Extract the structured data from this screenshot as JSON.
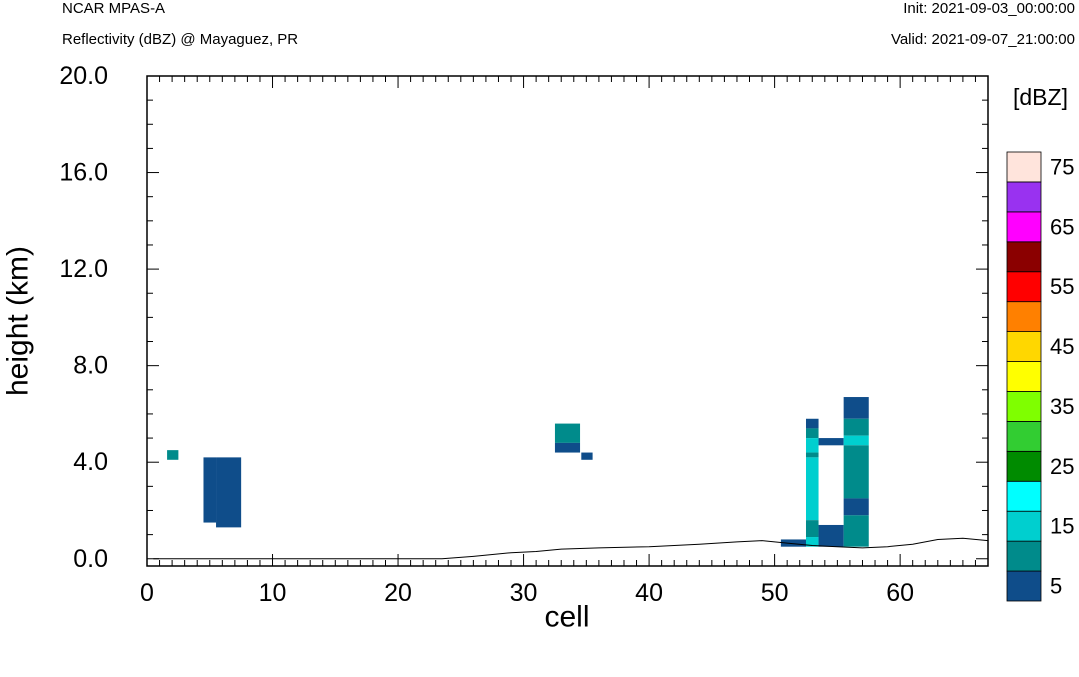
{
  "header": {
    "left_top": "NCAR MPAS-A",
    "left_sub": "Reflectivity (dBZ) @ Mayaguez, PR",
    "right_top": "Init: 2021-09-03_00:00:00",
    "right_sub": "Valid: 2021-09-07_21:00:00"
  },
  "chart_data": {
    "type": "heatmap",
    "xlabel": "cell",
    "ylabel": "height (km)",
    "xlim": [
      0,
      67
    ],
    "ylim": [
      -0.3,
      20.0
    ],
    "x_ticks": [
      0,
      10,
      20,
      30,
      40,
      50,
      60
    ],
    "x_tick_labels": [
      "0",
      "10",
      "20",
      "30",
      "40",
      "50",
      "60"
    ],
    "y_ticks": [
      0,
      4,
      8,
      12,
      16,
      20
    ],
    "y_tick_labels": [
      "0.0",
      "4.0",
      "8.0",
      "12.0",
      "16.0",
      "20.0"
    ],
    "colorbar": {
      "title": "[dBZ]",
      "levels": [
        5,
        10,
        15,
        20,
        25,
        30,
        35,
        40,
        45,
        50,
        55,
        60,
        65,
        70,
        75
      ],
      "colors": [
        "#0f4d8a",
        "#008b8b",
        "#00cfcf",
        "#00ffff",
        "#008b00",
        "#32cd32",
        "#7fff00",
        "#ffff00",
        "#ffd700",
        "#ff8000",
        "#ff0000",
        "#8b0000",
        "#ff00ff",
        "#9932f0",
        "#ffe4dc"
      ],
      "tick_labels": [
        "5",
        "15",
        "25",
        "35",
        "45",
        "55",
        "65",
        "75"
      ]
    },
    "cells": [
      {
        "x0": 1.6,
        "x1": 2.5,
        "y0": 4.1,
        "y1": 4.5,
        "dbz": 10
      },
      {
        "x0": 4.5,
        "x1": 5.5,
        "y0": 1.5,
        "y1": 4.2,
        "dbz": 5
      },
      {
        "x0": 5.5,
        "x1": 7.5,
        "y0": 1.3,
        "y1": 4.2,
        "dbz": 5
      },
      {
        "x0": 32.5,
        "x1": 34.5,
        "y0": 4.8,
        "y1": 5.6,
        "dbz": 10
      },
      {
        "x0": 32.5,
        "x1": 34.5,
        "y0": 4.4,
        "y1": 4.8,
        "dbz": 5
      },
      {
        "x0": 34.6,
        "x1": 35.5,
        "y0": 4.1,
        "y1": 4.4,
        "dbz": 5
      },
      {
        "x0": 50.5,
        "x1": 52.5,
        "y0": 0.5,
        "y1": 0.8,
        "dbz": 5
      },
      {
        "x0": 52.5,
        "x1": 53.5,
        "y0": 5.4,
        "y1": 5.8,
        "dbz": 5
      },
      {
        "x0": 52.5,
        "x1": 53.5,
        "y0": 5.0,
        "y1": 5.4,
        "dbz": 10
      },
      {
        "x0": 52.5,
        "x1": 53.5,
        "y0": 4.4,
        "y1": 5.0,
        "dbz": 15
      },
      {
        "x0": 52.5,
        "x1": 53.5,
        "y0": 4.2,
        "y1": 4.4,
        "dbz": 10
      },
      {
        "x0": 52.5,
        "x1": 53.5,
        "y0": 1.6,
        "y1": 4.2,
        "dbz": 15
      },
      {
        "x0": 52.5,
        "x1": 53.5,
        "y0": 0.9,
        "y1": 1.6,
        "dbz": 10
      },
      {
        "x0": 52.5,
        "x1": 53.5,
        "y0": 0.5,
        "y1": 0.9,
        "dbz": 15
      },
      {
        "x0": 53.5,
        "x1": 55.5,
        "y0": 4.7,
        "y1": 5.0,
        "dbz": 5
      },
      {
        "x0": 53.5,
        "x1": 55.5,
        "y0": 0.5,
        "y1": 1.4,
        "dbz": 5
      },
      {
        "x0": 55.5,
        "x1": 57.5,
        "y0": 5.8,
        "y1": 6.7,
        "dbz": 5
      },
      {
        "x0": 55.5,
        "x1": 57.5,
        "y0": 5.1,
        "y1": 5.8,
        "dbz": 10
      },
      {
        "x0": 55.5,
        "x1": 57.5,
        "y0": 4.7,
        "y1": 5.1,
        "dbz": 15
      },
      {
        "x0": 55.5,
        "x1": 57.5,
        "y0": 2.5,
        "y1": 4.7,
        "dbz": 10
      },
      {
        "x0": 55.5,
        "x1": 57.5,
        "y0": 1.8,
        "y1": 2.5,
        "dbz": 5
      },
      {
        "x0": 55.5,
        "x1": 57.5,
        "y0": 0.5,
        "y1": 1.8,
        "dbz": 10
      }
    ],
    "terrain": {
      "x": [
        0.5,
        23.5,
        26,
        29,
        31,
        33,
        36,
        40,
        44,
        47,
        49,
        51,
        53,
        55,
        57,
        59,
        61,
        63,
        65,
        67
      ],
      "y": [
        0.0,
        0.0,
        0.1,
        0.25,
        0.3,
        0.4,
        0.45,
        0.5,
        0.6,
        0.7,
        0.75,
        0.65,
        0.55,
        0.5,
        0.45,
        0.5,
        0.6,
        0.8,
        0.85,
        0.75
      ]
    }
  }
}
